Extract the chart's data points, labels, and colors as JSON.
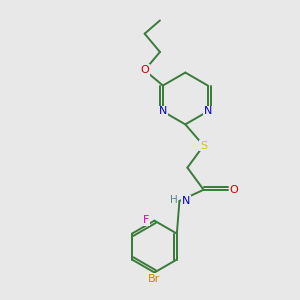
{
  "background_color": "#e8e8e8",
  "bond_color": "#3a7a3a",
  "atom_colors": {
    "N": "#0000cc",
    "O": "#cc0000",
    "S": "#cccc00",
    "F": "#cc00cc",
    "Br": "#cc8800",
    "H": "#558888",
    "C": "#3a7a3a"
  },
  "figsize": [
    3.0,
    3.0
  ],
  "dpi": 100
}
